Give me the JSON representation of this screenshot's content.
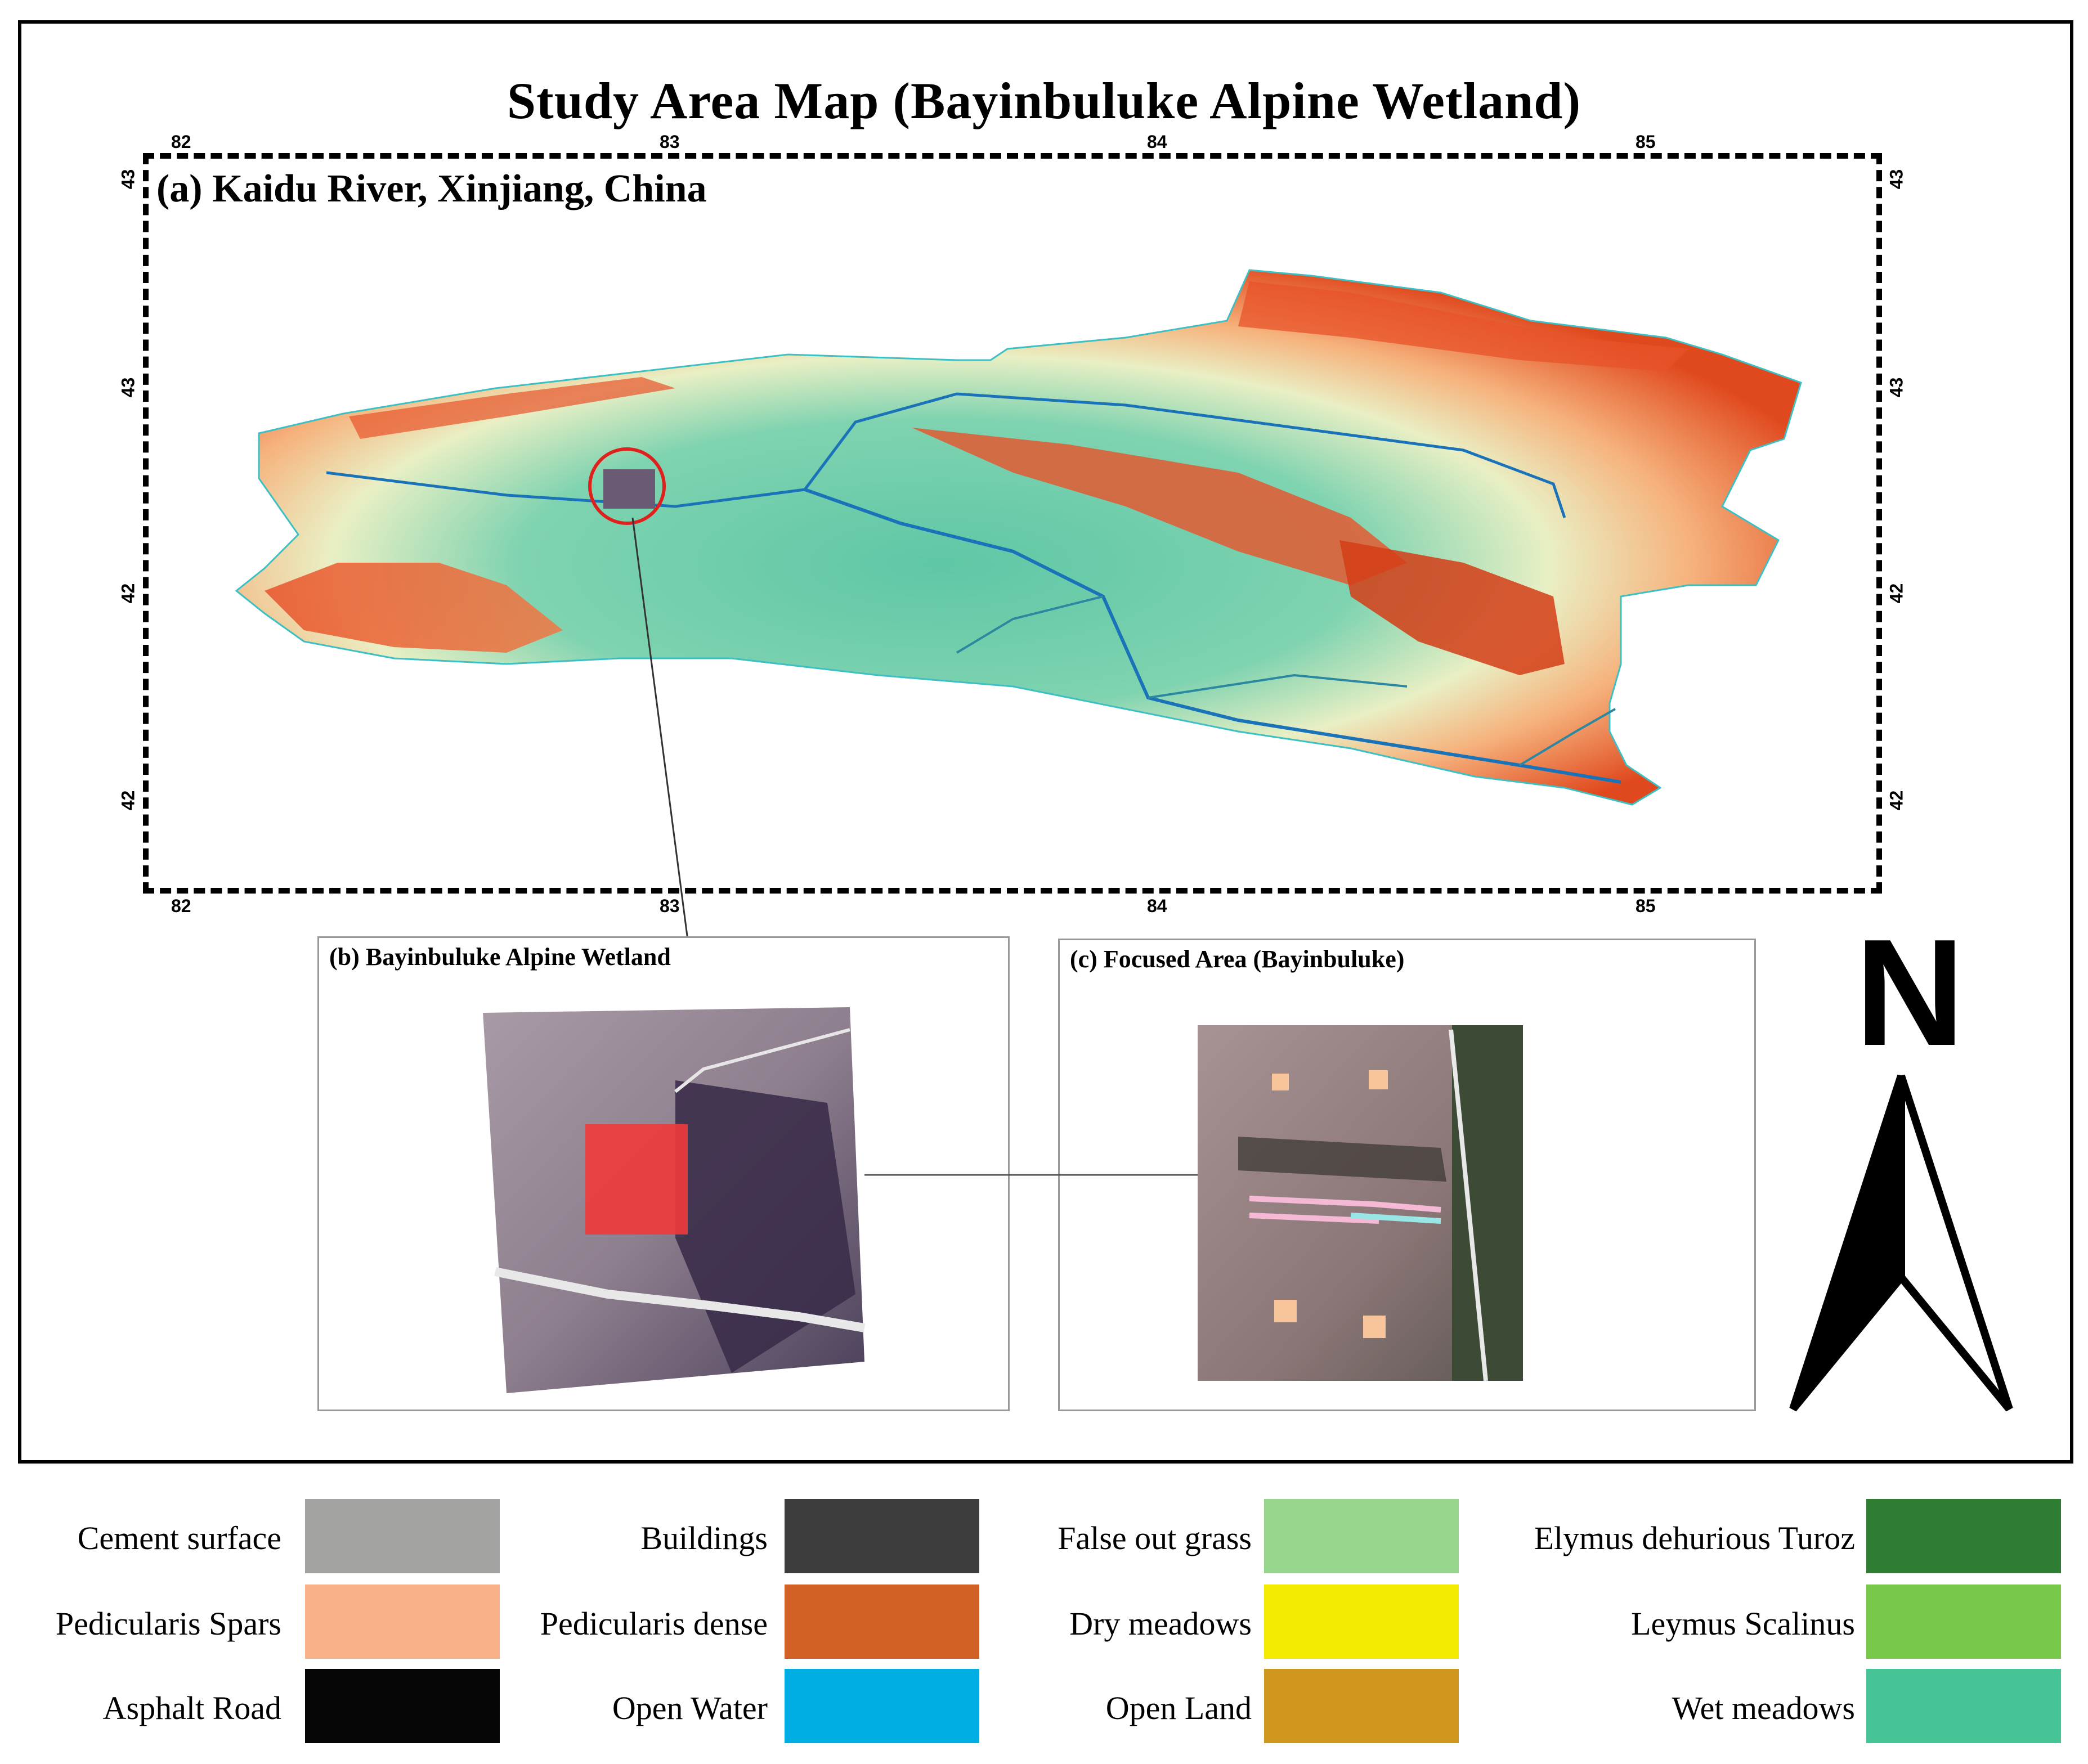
{
  "title": "Study Area Map (Bayinbuluke Alpine Wetland)",
  "panel_a": {
    "title": "(a) Kaidu River, Xinjiang, China",
    "top_ticks": [
      "82",
      "83",
      "84",
      "85"
    ],
    "bottom_ticks": [
      "82",
      "83",
      "84",
      "85"
    ],
    "left_ticks": [
      "43",
      "43",
      "42",
      "42"
    ],
    "right_ticks": [
      "43",
      "43",
      "42",
      "42"
    ]
  },
  "panel_b": {
    "title": "(b) Bayinbuluke Alpine Wetland"
  },
  "panel_c": {
    "title": "(c) Focused Area (Bayinbuluke)"
  },
  "north_arrow": {
    "label": "N",
    "icon": "north-arrow-icon"
  },
  "legend": [
    {
      "label": "Cement surface",
      "color": "#a3a3a1"
    },
    {
      "label": "Buildings",
      "color": "#3d3d3d"
    },
    {
      "label": "False out grass",
      "color": "#98d68d"
    },
    {
      "label": "Elymus dehurious Turoz",
      "color": "#2f7d33"
    },
    {
      "label": "Pedicularis Spars",
      "color": "#f8b189"
    },
    {
      "label": "Pedicularis dense",
      "color": "#d26126"
    },
    {
      "label": "Dry meadows",
      "color": "#f4ea00"
    },
    {
      "label": "Leymus Scalinus",
      "color": "#78c84a"
    },
    {
      "label": "Asphalt Road",
      "color": "#050505"
    },
    {
      "label": "Open Water",
      "color": "#00aee3"
    },
    {
      "label": "Open Land",
      "color": "#cf971d"
    },
    {
      "label": "Wet meadows",
      "color": "#47c496"
    }
  ]
}
